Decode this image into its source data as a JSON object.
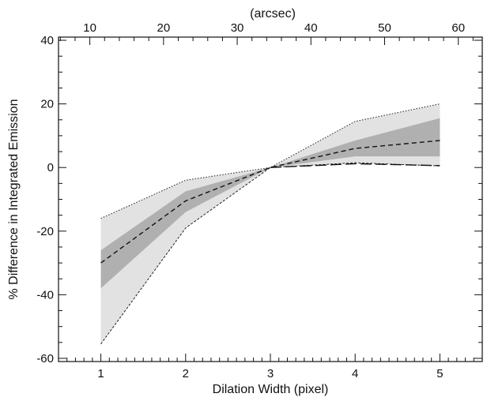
{
  "chart_data": {
    "type": "area",
    "xlabel": "Dilation Width (pixel)",
    "ylabel": "% Difference in Integrated Emission",
    "top_xlabel": "(arcsec)",
    "x": [
      1,
      2,
      3,
      4,
      5
    ],
    "xlim": [
      0.5,
      5.5
    ],
    "ylim": [
      -61,
      41
    ],
    "x_ticks": [
      1,
      2,
      3,
      4,
      5
    ],
    "x_tick_labels": [
      "1",
      "2",
      "3",
      "4",
      "5"
    ],
    "y_ticks": [
      -60,
      -40,
      -20,
      0,
      20,
      40
    ],
    "y_tick_labels": [
      "-60",
      "-40",
      "-20",
      "0",
      "20",
      "40"
    ],
    "top_ticks": [
      10,
      20,
      30,
      40,
      50,
      60
    ],
    "top_tick_labels": [
      "10",
      "20",
      "30",
      "40",
      "50",
      "60"
    ],
    "top_axis_per_pixel": 11.5,
    "grid": false,
    "series": [
      {
        "role": "outer-range",
        "upper": [
          -16,
          -4,
          0,
          14.5,
          20
        ],
        "lower": [
          -55.5,
          -19,
          0,
          1.5,
          0.5
        ],
        "color": "#e2e2e2",
        "edge_style": "dotted"
      },
      {
        "role": "inner-range",
        "upper": [
          -26,
          -7.5,
          0,
          8.5,
          15.5
        ],
        "lower": [
          -38,
          -14,
          0,
          3.5,
          3.5
        ],
        "color": "#b0b0b0"
      },
      {
        "role": "median",
        "values": [
          -30,
          -10.5,
          0,
          6,
          8.5
        ],
        "color": "#111111",
        "line_style": "dashed"
      },
      {
        "role": "minimum-line",
        "values": [
          null,
          null,
          0,
          1.2,
          0.6
        ],
        "color": "#111111",
        "line_style": "long-dashed"
      }
    ]
  }
}
